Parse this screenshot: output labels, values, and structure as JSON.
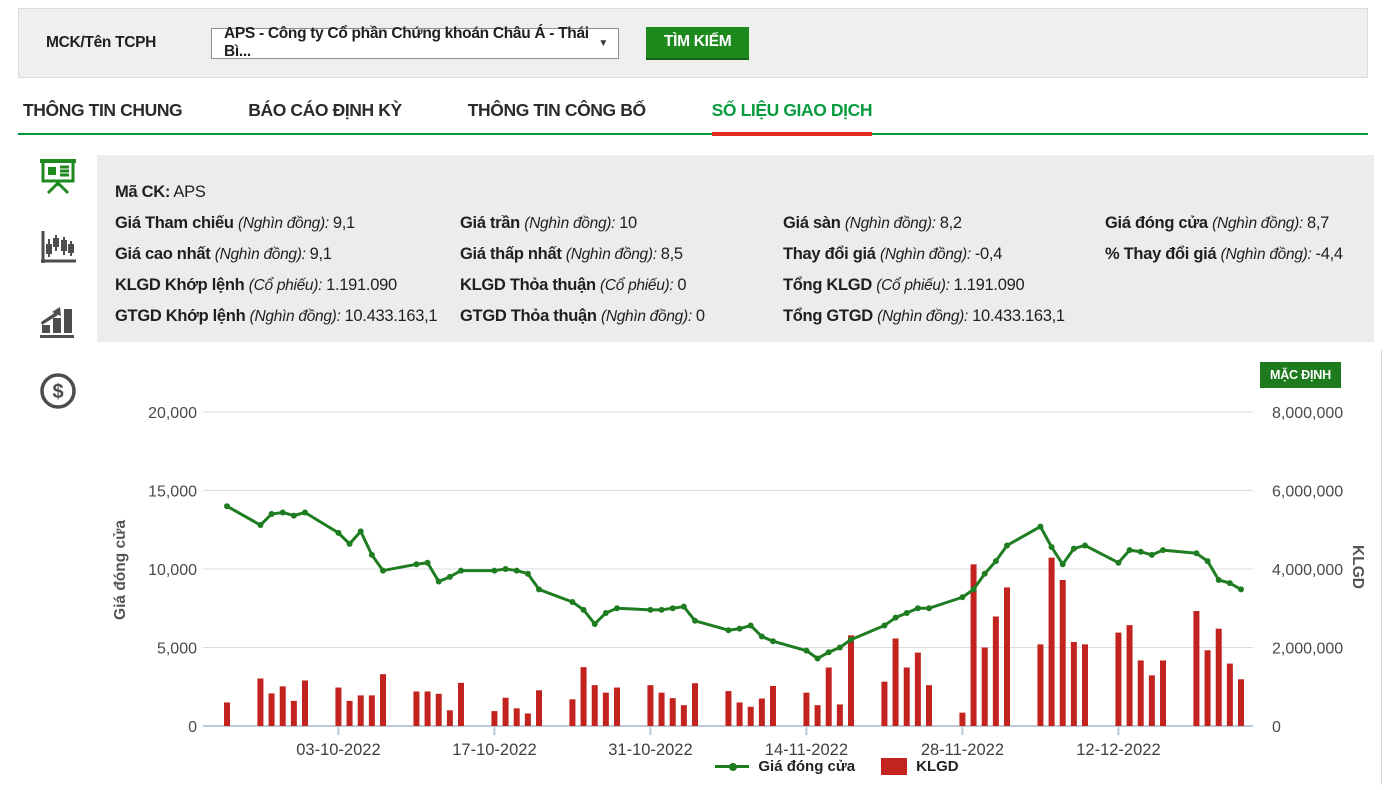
{
  "colors": {
    "accent_green": "#1e8a1e",
    "dark_green": "#1d7a1d",
    "tab_active_green": "#089b3f",
    "underline_green": "#009a3d",
    "underline_red": "#e02b1d",
    "line_green": "#1f7d21",
    "bar_red": "#c2231e",
    "axis_blue_gray": "#b9c9d9",
    "grid_gray": "#dcdcdc",
    "panel_gray": "#ececec"
  },
  "search_bar": {
    "label": "MCK/Tên TCPH",
    "select_value": "APS - Công ty Cổ phần Chứng khoán Châu Á - Thái Bì...",
    "search_button": "TÌM KIẾM"
  },
  "tabs": [
    {
      "label": "THÔNG TIN CHUNG",
      "active": false
    },
    {
      "label": "BÁO CÁO ĐỊNH KỲ",
      "active": false
    },
    {
      "label": "THÔNG TIN CÔNG BỐ",
      "active": false
    },
    {
      "label": "SỐ LIỆU GIAO DỊCH",
      "active": true
    }
  ],
  "sidebar_icons": [
    {
      "name": "presentation-board-icon",
      "active": true
    },
    {
      "name": "candlestick-chart-icon",
      "active": false
    },
    {
      "name": "bar-chart-growth-icon",
      "active": false
    },
    {
      "name": "dollar-coin-icon",
      "active": false
    }
  ],
  "info": {
    "rows": [
      [
        {
          "label": "Mã CK:",
          "unit": "",
          "value": "APS"
        }
      ],
      [
        {
          "label": "Giá Tham chiếu",
          "unit": "(Nghìn đồng):",
          "value": "9,1"
        },
        {
          "label": "Giá trần",
          "unit": "(Nghìn đồng):",
          "value": "10"
        },
        {
          "label": "Giá sàn",
          "unit": "(Nghìn đồng):",
          "value": "8,2"
        },
        {
          "label": "Giá đóng cửa",
          "unit": "(Nghìn đồng):",
          "value": "8,7"
        }
      ],
      [
        {
          "label": "Giá cao nhất",
          "unit": "(Nghìn đồng):",
          "value": "9,1"
        },
        {
          "label": "Giá thấp nhất",
          "unit": "(Nghìn đồng):",
          "value": "8,5"
        },
        {
          "label": "Thay đổi giá",
          "unit": "(Nghìn đồng):",
          "value": "-0,4"
        },
        {
          "label": "% Thay đổi giá",
          "unit": "(Nghìn đồng):",
          "value": "-4,4"
        }
      ],
      [
        {
          "label": "KLGD Khớp lệnh",
          "unit": "(Cổ phiếu):",
          "value": "1.191.090"
        },
        {
          "label": "KLGD Thỏa thuận",
          "unit": "(Cổ phiếu):",
          "value": "0"
        },
        {
          "label": "Tổng KLGD",
          "unit": "(Cổ phiếu):",
          "value": "1.191.090"
        }
      ],
      [
        {
          "label": "GTGD Khớp lệnh",
          "unit": "(Nghìn đồng):",
          "value": "10.433.163,1"
        },
        {
          "label": "GTGD Thỏa thuận",
          "unit": "(Nghìn đồng):",
          "value": "0"
        },
        {
          "label": "Tổng GTGD",
          "unit": "(Nghìn đồng):",
          "value": "10.433.163,1"
        }
      ]
    ]
  },
  "chart": {
    "default_button": "MẶC ĐỊNH",
    "legend": [
      {
        "label": "Giá đóng cửa",
        "type": "line"
      },
      {
        "label": "KLGD",
        "type": "bar"
      }
    ]
  },
  "chart_data": {
    "type": "line+bar",
    "title": "",
    "y_left": {
      "label": "Giá đóng cửa",
      "min": 0,
      "max": 20000,
      "ticks": [
        "0",
        "5,000",
        "10,000",
        "15,000",
        "20,000"
      ]
    },
    "y_right": {
      "label": "KLGD",
      "min": 0,
      "max": 8000000,
      "ticks": [
        "0",
        "2,000,000",
        "4,000,000",
        "6,000,000",
        "8,000,000"
      ]
    },
    "x_ticks": [
      "03-10-2022",
      "17-10-2022",
      "31-10-2022",
      "14-11-2022",
      "28-11-2022",
      "12-12-2022"
    ],
    "start_date": "23-09-2022",
    "series": [
      {
        "name": "Giá đóng cửa",
        "type": "line",
        "axis": "left"
      },
      {
        "name": "KLGD",
        "type": "bar",
        "axis": "right"
      }
    ],
    "points": [
      {
        "date": "23-09-2022",
        "close": 14000,
        "volume": 600000
      },
      {
        "date": "26-09-2022",
        "close": 12800,
        "volume": 1210000
      },
      {
        "date": "27-09-2022",
        "close": 13500,
        "volume": 830000
      },
      {
        "date": "28-09-2022",
        "close": 13600,
        "volume": 1010000
      },
      {
        "date": "29-09-2022",
        "close": 13400,
        "volume": 640000
      },
      {
        "date": "30-09-2022",
        "close": 13600,
        "volume": 1160000
      },
      {
        "date": "03-10-2022",
        "close": 12300,
        "volume": 980000
      },
      {
        "date": "04-10-2022",
        "close": 11600,
        "volume": 640000
      },
      {
        "date": "05-10-2022",
        "close": 12400,
        "volume": 780000
      },
      {
        "date": "06-10-2022",
        "close": 10900,
        "volume": 780000
      },
      {
        "date": "07-10-2022",
        "close": 9900,
        "volume": 1320000
      },
      {
        "date": "10-10-2022",
        "close": 10300,
        "volume": 880000
      },
      {
        "date": "11-10-2022",
        "close": 10400,
        "volume": 880000
      },
      {
        "date": "12-10-2022",
        "close": 9200,
        "volume": 820000
      },
      {
        "date": "13-10-2022",
        "close": 9500,
        "volume": 400000
      },
      {
        "date": "14-10-2022",
        "close": 9900,
        "volume": 1100000
      },
      {
        "date": "17-10-2022",
        "close": 9900,
        "volume": 380000
      },
      {
        "date": "18-10-2022",
        "close": 10000,
        "volume": 720000
      },
      {
        "date": "19-10-2022",
        "close": 9900,
        "volume": 450000
      },
      {
        "date": "20-10-2022",
        "close": 9700,
        "volume": 320000
      },
      {
        "date": "21-10-2022",
        "close": 8700,
        "volume": 910000
      },
      {
        "date": "24-10-2022",
        "close": 7900,
        "volume": 680000
      },
      {
        "date": "25-10-2022",
        "close": 7400,
        "volume": 1500000
      },
      {
        "date": "26-10-2022",
        "close": 6500,
        "volume": 1040000
      },
      {
        "date": "27-10-2022",
        "close": 7200,
        "volume": 850000
      },
      {
        "date": "28-10-2022",
        "close": 7500,
        "volume": 980000
      },
      {
        "date": "31-10-2022",
        "close": 7400,
        "volume": 1040000
      },
      {
        "date": "01-11-2022",
        "close": 7400,
        "volume": 850000
      },
      {
        "date": "02-11-2022",
        "close": 7500,
        "volume": 710000
      },
      {
        "date": "03-11-2022",
        "close": 7600,
        "volume": 530000
      },
      {
        "date": "04-11-2022",
        "close": 6700,
        "volume": 1090000
      },
      {
        "date": "07-11-2022",
        "close": 6100,
        "volume": 890000
      },
      {
        "date": "08-11-2022",
        "close": 6200,
        "volume": 600000
      },
      {
        "date": "09-11-2022",
        "close": 6400,
        "volume": 490000
      },
      {
        "date": "10-11-2022",
        "close": 5700,
        "volume": 700000
      },
      {
        "date": "11-11-2022",
        "close": 5400,
        "volume": 1020000
      },
      {
        "date": "14-11-2022",
        "close": 4800,
        "volume": 850000
      },
      {
        "date": "15-11-2022",
        "close": 4300,
        "volume": 530000
      },
      {
        "date": "16-11-2022",
        "close": 4700,
        "volume": 1490000
      },
      {
        "date": "17-11-2022",
        "close": 5000,
        "volume": 550000
      },
      {
        "date": "18-11-2022",
        "close": 5500,
        "volume": 2310000
      },
      {
        "date": "21-11-2022",
        "close": 6400,
        "volume": 1130000
      },
      {
        "date": "22-11-2022",
        "close": 6900,
        "volume": 2230000
      },
      {
        "date": "23-11-2022",
        "close": 7200,
        "volume": 1490000
      },
      {
        "date": "24-11-2022",
        "close": 7500,
        "volume": 1870000
      },
      {
        "date": "25-11-2022",
        "close": 7500,
        "volume": 1040000
      },
      {
        "date": "28-11-2022",
        "close": 8200,
        "volume": 340000
      },
      {
        "date": "29-11-2022",
        "close": 8700,
        "volume": 4120000
      },
      {
        "date": "30-11-2022",
        "close": 9700,
        "volume": 2000000
      },
      {
        "date": "01-12-2022",
        "close": 10500,
        "volume": 2790000
      },
      {
        "date": "02-12-2022",
        "close": 11500,
        "volume": 3530000
      },
      {
        "date": "05-12-2022",
        "close": 12700,
        "volume": 2080000
      },
      {
        "date": "06-12-2022",
        "close": 11400,
        "volume": 4290000
      },
      {
        "date": "07-12-2022",
        "close": 10300,
        "volume": 3720000
      },
      {
        "date": "08-12-2022",
        "close": 11300,
        "volume": 2140000
      },
      {
        "date": "09-12-2022",
        "close": 11500,
        "volume": 2080000
      },
      {
        "date": "12-12-2022",
        "close": 10400,
        "volume": 2380000
      },
      {
        "date": "13-12-2022",
        "close": 11200,
        "volume": 2570000
      },
      {
        "date": "14-12-2022",
        "close": 11100,
        "volume": 1670000
      },
      {
        "date": "15-12-2022",
        "close": 10900,
        "volume": 1290000
      },
      {
        "date": "16-12-2022",
        "close": 11200,
        "volume": 1670000
      },
      {
        "date": "19-12-2022",
        "close": 11000,
        "volume": 2930000
      },
      {
        "date": "20-12-2022",
        "close": 10500,
        "volume": 1930000
      },
      {
        "date": "21-12-2022",
        "close": 9300,
        "volume": 2480000
      },
      {
        "date": "22-12-2022",
        "close": 9100,
        "volume": 1590000
      },
      {
        "date": "23-12-2022",
        "close": 8700,
        "volume": 1190000
      }
    ]
  }
}
